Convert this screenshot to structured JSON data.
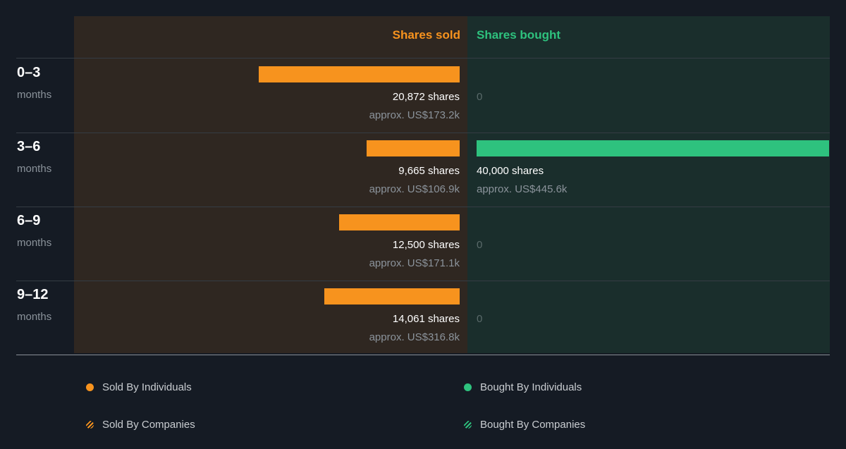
{
  "chart_data": {
    "type": "bar",
    "orientation": "horizontal-diverging",
    "headers": {
      "sold": "Shares sold",
      "bought": "Shares bought"
    },
    "categories": [
      {
        "label": "0–3",
        "sublabel": "months"
      },
      {
        "label": "3–6",
        "sublabel": "months"
      },
      {
        "label": "6–9",
        "sublabel": "months"
      },
      {
        "label": "9–12",
        "sublabel": "months"
      }
    ],
    "series": [
      {
        "name": "Sold By Individuals",
        "side": "sold",
        "values": [
          20872,
          9665,
          12500,
          14061
        ],
        "shares_text": [
          "20,872 shares",
          "9,665 shares",
          "12,500 shares",
          "14,061 shares"
        ],
        "approx_text": [
          "approx. US$173.2k",
          "approx. US$106.9k",
          "approx. US$171.1k",
          "approx. US$316.8k"
        ]
      },
      {
        "name": "Bought By Individuals",
        "side": "bought",
        "values": [
          0,
          40000,
          0,
          0
        ],
        "shares_text": [
          "0",
          "40,000 shares",
          "0",
          "0"
        ],
        "approx_text": [
          "",
          "approx. US$445.6k",
          "",
          ""
        ]
      }
    ],
    "legend": {
      "placement": "bottom",
      "items": [
        {
          "label": "Sold By Individuals",
          "color": "#f7931e",
          "style": "solid"
        },
        {
          "label": "Bought By Individuals",
          "color": "#2ec27e",
          "style": "solid"
        },
        {
          "label": "Sold By Companies",
          "color": "#f7931e",
          "style": "hatched"
        },
        {
          "label": "Bought By Companies",
          "color": "#2ec27e",
          "style": "hatched"
        }
      ]
    },
    "colors": {
      "sold": "#f7931e",
      "bought": "#2ec27e",
      "sold_panel": "#2f2721",
      "bought_panel": "#1a2e2c",
      "background": "#151b24"
    }
  }
}
